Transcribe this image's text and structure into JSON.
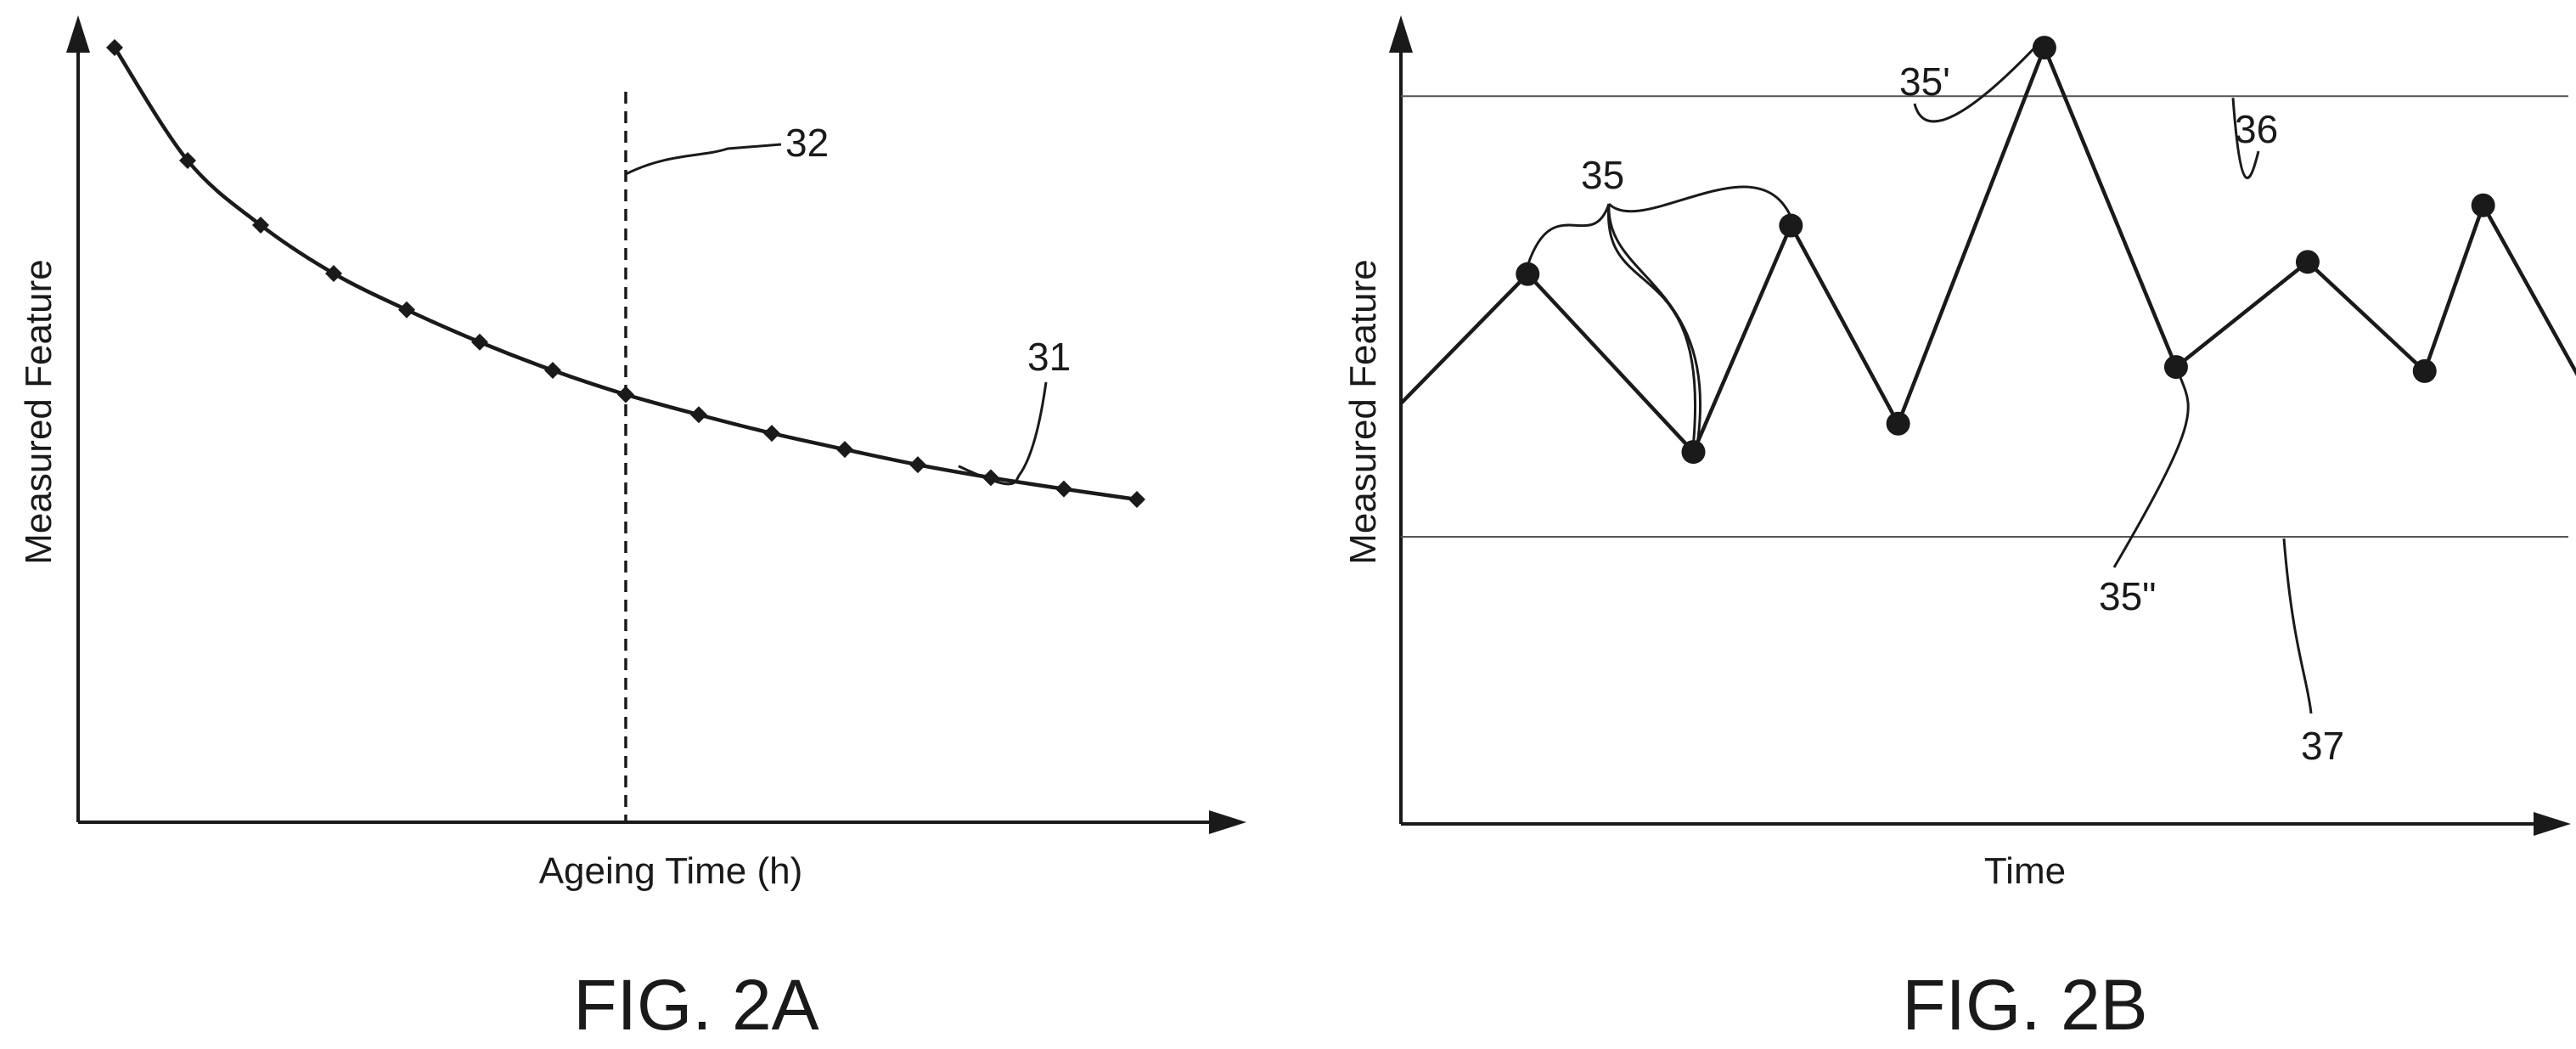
{
  "chart_data": [
    {
      "type": "line",
      "caption": "FIG. 2A",
      "title": "",
      "xlabel": "Ageing Time (h)",
      "ylabel": "Measured Feature",
      "xlim": [
        0,
        16
      ],
      "ylim": [
        0,
        10
      ],
      "grid": false,
      "x": [
        0.5,
        1.5,
        2.5,
        3.5,
        4.5,
        5.5,
        6.5,
        7.5,
        8.5,
        9.5,
        10.5,
        11.5,
        12.5,
        13.5,
        14.5
      ],
      "series": [
        {
          "label_ref": "31",
          "marker": "diamond",
          "values": [
            9.6,
            8.2,
            7.4,
            6.8,
            6.35,
            5.95,
            5.6,
            5.3,
            5.05,
            4.82,
            4.62,
            4.43,
            4.27,
            4.13,
            4.0
          ]
        }
      ],
      "vline": {
        "x": 7.5,
        "style": "dashed",
        "label_ref": "32"
      },
      "annotations": [
        {
          "text": "31",
          "target": "series"
        },
        {
          "text": "32",
          "target": "vline"
        }
      ]
    },
    {
      "type": "line",
      "caption": "FIG. 2B",
      "title": "",
      "xlabel": "Time",
      "ylabel": "Measured Feature",
      "xlim": [
        0,
        12
      ],
      "ylim": [
        0,
        10
      ],
      "grid": false,
      "x": [
        0,
        1.3,
        3.0,
        4.0,
        5.1,
        6.6,
        7.95,
        9.3,
        10.5,
        11.1,
        12.6
      ],
      "series": [
        {
          "marker": "circle",
          "values": [
            5.2,
            6.8,
            4.6,
            7.4,
            4.95,
            9.6,
            5.65,
            6.95,
            5.6,
            7.65,
            4.4
          ],
          "first_point_marker": false
        }
      ],
      "hlines": [
        {
          "y": 9.0,
          "label_ref": "36"
        },
        {
          "y": 3.55,
          "label_ref": "37"
        }
      ],
      "annotations": [
        {
          "text": "35",
          "target_points": [
            1,
            2,
            3
          ]
        },
        {
          "text": "35'",
          "target_points": [
            5
          ]
        },
        {
          "text": "35\"",
          "target_points": [
            6
          ]
        },
        {
          "text": "36",
          "target": "upper-hline"
        },
        {
          "text": "37",
          "target": "lower-hline"
        }
      ]
    }
  ]
}
